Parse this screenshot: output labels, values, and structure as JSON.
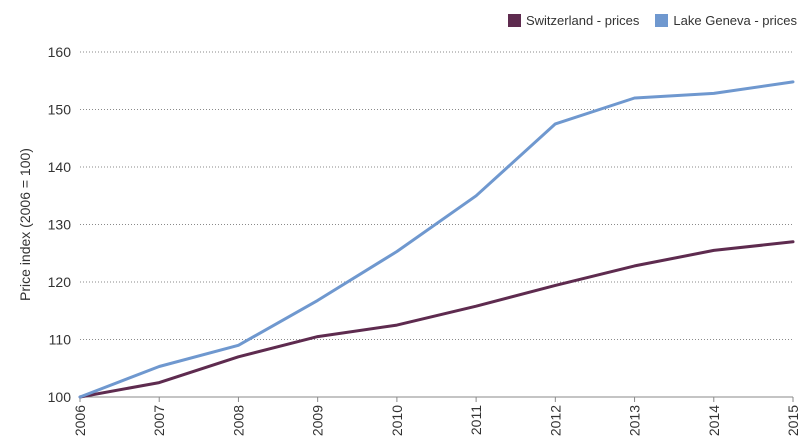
{
  "chart_data": {
    "type": "line",
    "title": "",
    "xlabel": "",
    "ylabel": "Price index (2006 = 100)",
    "x": [
      "2006",
      "2007",
      "2008",
      "2009",
      "2010",
      "2011",
      "2012",
      "2013",
      "2014",
      "2015"
    ],
    "ylim": [
      100,
      160
    ],
    "yticks": [
      "100",
      "110",
      "120",
      "130",
      "140",
      "150",
      "160"
    ],
    "grid": "horizontal-dotted",
    "legend_position": "top-right",
    "series": [
      {
        "name": "Switzerland - prices",
        "color": "#5e2b4f",
        "values": [
          100,
          102.5,
          107,
          110.5,
          112.5,
          115.8,
          119.4,
          122.8,
          125.5,
          127
        ]
      },
      {
        "name": "Lake Geneva - prices",
        "color": "#6f98cf",
        "values": [
          100,
          105.3,
          109,
          116.8,
          125.3,
          135,
          147.5,
          152,
          152.8,
          154.8
        ]
      }
    ]
  }
}
